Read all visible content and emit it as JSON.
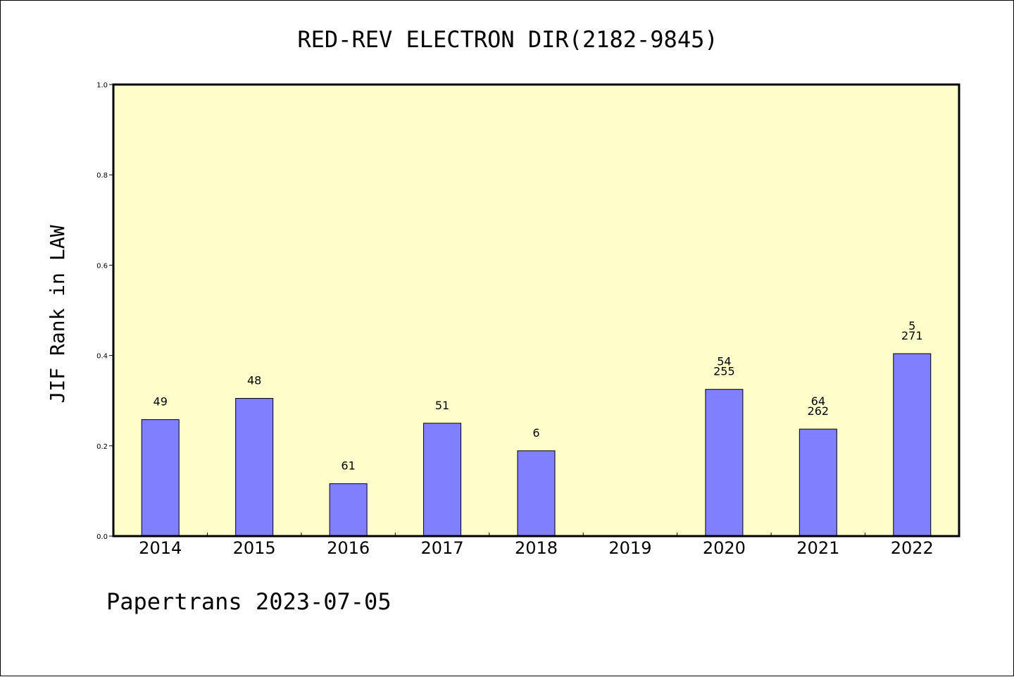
{
  "chart_data": {
    "type": "bar",
    "title": "RED-REV ELECTRON DIR(2182-9845)",
    "xlabel": "",
    "ylabel": "JIF Rank in LAW",
    "footer": "Papertrans 2023-07-05",
    "categories": [
      "2014",
      "2015",
      "2016",
      "2017",
      "2018",
      "2019",
      "2020",
      "2021",
      "2022"
    ],
    "values": [
      0.258,
      0.305,
      0.116,
      0.25,
      0.189,
      null,
      0.325,
      0.237,
      0.404
    ],
    "bar_labels": [
      [
        "49"
      ],
      [
        "48"
      ],
      [
        "61"
      ],
      [
        "51"
      ],
      [
        "6"
      ],
      [],
      [
        "54",
        "255"
      ],
      [
        "64",
        "262"
      ],
      [
        "5",
        "271"
      ]
    ],
    "ylim": [
      0,
      1.0
    ],
    "yticks": [
      "0.0",
      "0.2",
      "0.4",
      "0.6",
      "0.8",
      "1.0"
    ],
    "grid": false,
    "legend": "none",
    "colors": {
      "plot_background": "#ffffcc",
      "bar_fill": "#8080ff",
      "bar_edge": "#000000",
      "axes": "#000000"
    }
  }
}
